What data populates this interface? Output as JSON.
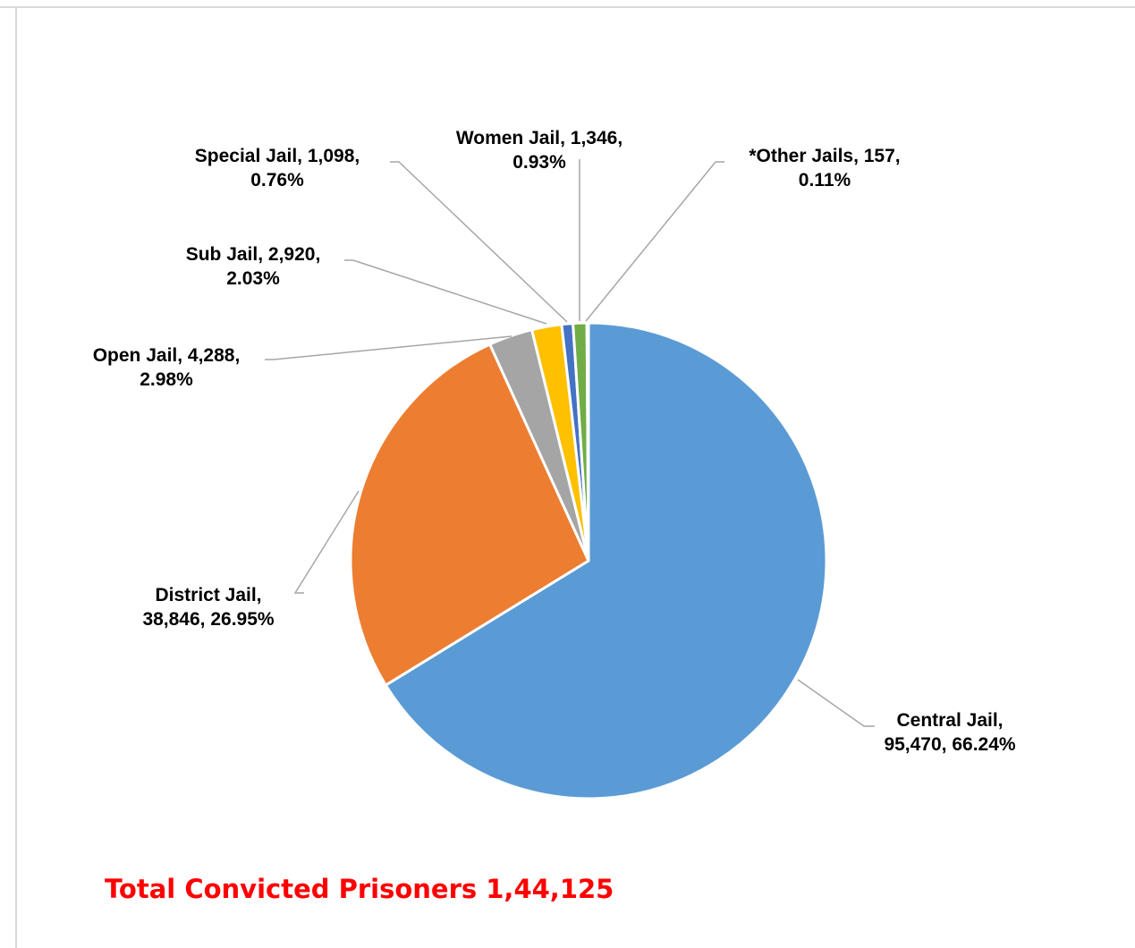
{
  "chart_data": {
    "type": "pie",
    "slices": [
      {
        "label": "Central Jail",
        "value": 95470,
        "percent": 66.24,
        "value_text": "95,470",
        "percent_text": "66.24%",
        "color": "#5B9BD5"
      },
      {
        "label": "District Jail",
        "value": 38846,
        "percent": 26.95,
        "value_text": "38,846",
        "percent_text": "26.95%",
        "color": "#ED7D31"
      },
      {
        "label": "Open Jail",
        "value": 4288,
        "percent": 2.98,
        "value_text": "4,288",
        "percent_text": "2.98%",
        "color": "#A5A5A5"
      },
      {
        "label": "Sub Jail",
        "value": 2920,
        "percent": 2.03,
        "value_text": "2,920",
        "percent_text": "2.03%",
        "color": "#FFC000"
      },
      {
        "label": "Special Jail",
        "value": 1098,
        "percent": 0.76,
        "value_text": "1,098",
        "percent_text": "0.76%",
        "color": "#4472C4"
      },
      {
        "label": "Women Jail",
        "value": 1346,
        "percent": 0.93,
        "value_text": "1,346",
        "percent_text": "0.93%",
        "color": "#70AD47"
      },
      {
        "label": "*Other Jails",
        "value": 157,
        "percent": 0.11,
        "value_text": "157",
        "percent_text": "0.11%",
        "color": "#255E91"
      }
    ],
    "annotation": "Total Convicted Prisoners 1,44,125",
    "annotation_color": "#FF0000",
    "legend": "none",
    "leader_line_color": "#A6A6A6"
  }
}
